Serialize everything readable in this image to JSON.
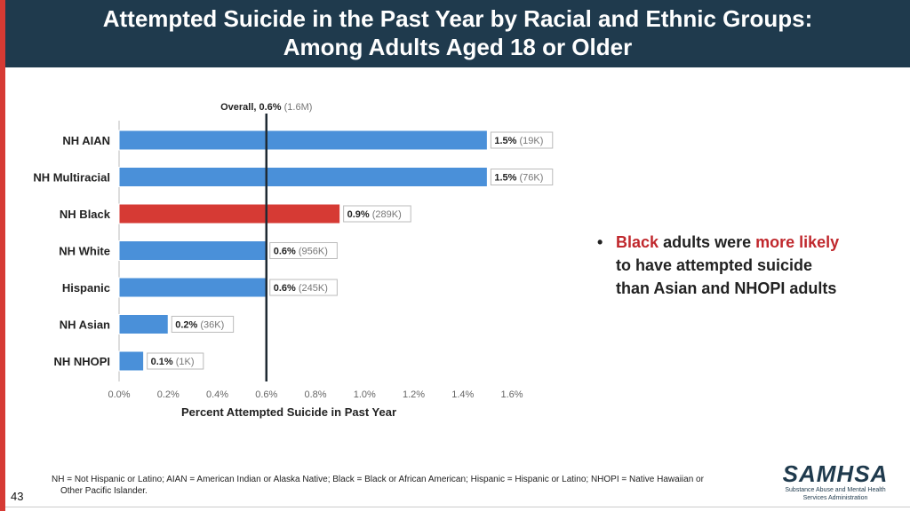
{
  "header": {
    "title_line1": "Attempted Suicide in the Past Year by Racial and Ethnic Groups:",
    "title_line2": "Among Adults Aged 18 or Older"
  },
  "colors": {
    "header_bg": "#1f3a4d",
    "bar_default": "#4a90d9",
    "bar_highlight": "#d63a34",
    "accent_red": "#c0282d"
  },
  "chart_data": {
    "type": "bar",
    "orientation": "horizontal",
    "categories": [
      "NH AIAN",
      "NH Multiracial",
      "NH Black",
      "NH White",
      "Hispanic",
      "NH Asian",
      "NH NHOPI"
    ],
    "values": [
      1.5,
      1.5,
      0.9,
      0.6,
      0.6,
      0.2,
      0.1
    ],
    "value_labels": [
      "1.5%",
      "1.5%",
      "0.9%",
      "0.6%",
      "0.6%",
      "0.2%",
      "0.1%"
    ],
    "count_labels": [
      "(19K)",
      "(76K)",
      "(289K)",
      "(956K)",
      "(245K)",
      "(36K)",
      "(1K)"
    ],
    "highlight": "NH Black",
    "reference_line": {
      "value": 0.6,
      "label": "Overall, 0.6%",
      "count": "(1.6M)"
    },
    "xlabel": "Percent Attempted Suicide in Past Year",
    "xlim": [
      0,
      1.6
    ],
    "xticks": [
      "0.0%",
      "0.2%",
      "0.4%",
      "0.6%",
      "0.8%",
      "1.0%",
      "1.2%",
      "1.4%",
      "1.6%"
    ],
    "grid": false
  },
  "bullet": {
    "symbol": "•",
    "black": "Black",
    "adults_were": "adults were",
    "more_likely": "more likely",
    "line2": "to have attempted suicide",
    "line3": "than Asian and NHOPI adults"
  },
  "footnote": {
    "line1": "NH = Not Hispanic or Latino; AIAN = American Indian or Alaska Native; Black = Black or African American; Hispanic = Hispanic or Latino; NHOPI = Native Hawaiian or",
    "line2": "Other Pacific Islander."
  },
  "page_number": "43",
  "logo": {
    "name": "SAMHSA",
    "line1": "Substance Abuse and Mental Health",
    "line2": "Services Administration"
  }
}
